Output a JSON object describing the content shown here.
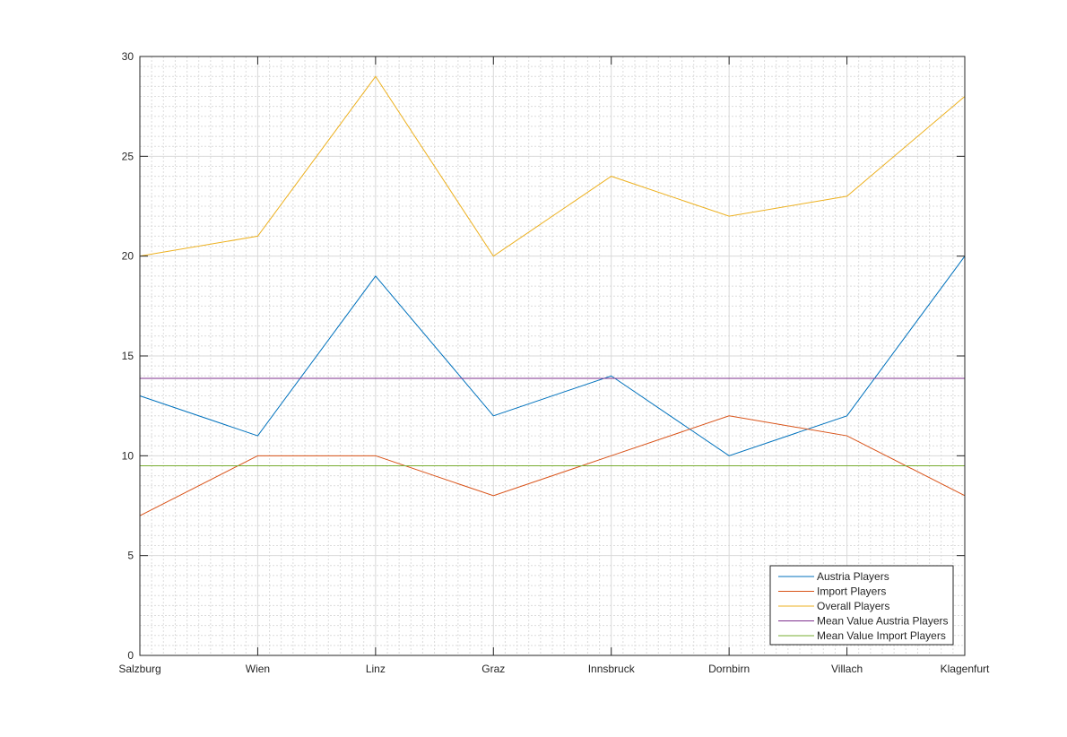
{
  "chart_data": {
    "type": "line",
    "title": "",
    "xlabel": "",
    "ylabel": "",
    "categories": [
      "Salzburg",
      "Wien",
      "Linz",
      "Graz",
      "Innsbruck",
      "Dornbirn",
      "Villach",
      "Klagenfurt"
    ],
    "ylim": [
      0,
      30
    ],
    "yticks": [
      0,
      5,
      10,
      15,
      20,
      25,
      30
    ],
    "grid": "on (major and minor)",
    "legend_placement": "bottom-right",
    "series": [
      {
        "name": "Austria Players",
        "color": "#0072BD",
        "values": [
          13,
          11,
          19,
          12,
          14,
          10,
          12,
          20
        ]
      },
      {
        "name": "Import Players",
        "color": "#D95319",
        "values": [
          7,
          10,
          10,
          8,
          10,
          12,
          11,
          8
        ]
      },
      {
        "name": "Overall Players",
        "color": "#EDB120",
        "values": [
          20,
          21,
          29,
          20,
          24,
          22,
          23,
          28
        ]
      },
      {
        "name": "Mean Value Austria Players",
        "color": "#7E2F8E",
        "values": [
          13.875,
          13.875,
          13.875,
          13.875,
          13.875,
          13.875,
          13.875,
          13.875
        ]
      },
      {
        "name": "Mean Value Import Players",
        "color": "#77AC30",
        "values": [
          9.5,
          9.5,
          9.5,
          9.5,
          9.5,
          9.5,
          9.5,
          9.5
        ]
      }
    ]
  }
}
